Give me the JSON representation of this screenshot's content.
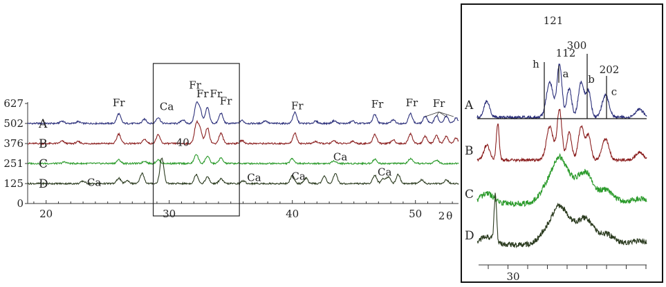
{
  "chart_data": [
    {
      "type": "line",
      "title": "",
      "xlabel": "2θ",
      "ylabel": "",
      "xlim": [
        18.5,
        53.5
      ],
      "ylim": [
        0,
        627
      ],
      "x_ticks": [
        20,
        30,
        40,
        50
      ],
      "y_ticks": [
        0,
        125,
        251,
        376,
        502,
        627
      ],
      "series": [
        {
          "name": "A",
          "color": "#2b2f7a",
          "baseline": 502,
          "peaks": [
            [
              21.3,
              40
            ],
            [
              22.6,
              30
            ],
            [
              25.9,
              160
            ],
            [
              28.0,
              70
            ],
            [
              29.1,
              100
            ],
            [
              31.1,
              60
            ],
            [
              32.2,
              300
            ],
            [
              32.5,
              220
            ],
            [
              33.1,
              260
            ],
            [
              34.2,
              170
            ],
            [
              35.9,
              50
            ],
            [
              37.8,
              45
            ],
            [
              40.2,
              180
            ],
            [
              41.9,
              35
            ],
            [
              43.4,
              45
            ],
            [
              44.9,
              40
            ],
            [
              46.7,
              150
            ],
            [
              48.2,
              60
            ],
            [
              49.6,
              160
            ],
            [
              50.8,
              120
            ],
            [
              51.7,
              130
            ],
            [
              52.5,
              120
            ],
            [
              53.3,
              90
            ]
          ]
        },
        {
          "name": "B",
          "color": "#8b1f1f",
          "baseline": 376,
          "peaks": [
            [
              21.3,
              40
            ],
            [
              22.6,
              30
            ],
            [
              25.9,
              160
            ],
            [
              28.0,
              70
            ],
            [
              29.1,
              140
            ],
            [
              32.2,
              310
            ],
            [
              32.5,
              220
            ],
            [
              33.1,
              260
            ],
            [
              34.2,
              170
            ],
            [
              35.9,
              50
            ],
            [
              40.2,
              170
            ],
            [
              41.9,
              35
            ],
            [
              43.4,
              45
            ],
            [
              44.9,
              40
            ],
            [
              46.7,
              150
            ],
            [
              48.2,
              60
            ],
            [
              49.6,
              160
            ],
            [
              50.8,
              120
            ],
            [
              51.7,
              130
            ],
            [
              52.5,
              120
            ],
            [
              53.3,
              90
            ]
          ]
        },
        {
          "name": "C",
          "color": "#2a9a2a",
          "baseline": 251,
          "peaks": [
            [
              21.5,
              25
            ],
            [
              25.9,
              60
            ],
            [
              28.0,
              40
            ],
            [
              29.1,
              60
            ],
            [
              32.2,
              150
            ],
            [
              33.1,
              120
            ],
            [
              34.2,
              90
            ],
            [
              40.0,
              80
            ],
            [
              43.4,
              45
            ],
            [
              46.7,
              70
            ],
            [
              49.6,
              80
            ],
            [
              51.7,
              60
            ]
          ]
        },
        {
          "name": "D",
          "color": "#2a3a1e",
          "baseline": 125,
          "peaks": [
            [
              23.0,
              40
            ],
            [
              25.9,
              90
            ],
            [
              26.6,
              50
            ],
            [
              27.8,
              170
            ],
            [
              29.4,
              420
            ],
            [
              32.2,
              150
            ],
            [
              33.1,
              110
            ],
            [
              34.2,
              80
            ],
            [
              36.0,
              45
            ],
            [
              40.0,
              130
            ],
            [
              41.1,
              90
            ],
            [
              42.6,
              120
            ],
            [
              43.5,
              160
            ],
            [
              46.7,
              140
            ],
            [
              47.4,
              80
            ],
            [
              47.8,
              110
            ],
            [
              48.6,
              150
            ],
            [
              50.5,
              60
            ],
            [
              52.5,
              60
            ]
          ]
        }
      ],
      "annotations": [
        {
          "text": "Fr",
          "x": 25.9,
          "y": 610
        },
        {
          "text": "Ca",
          "x": 29.8,
          "y": 585
        },
        {
          "text": "Fr",
          "x": 32.1,
          "y": 720
        },
        {
          "text": "Fr",
          "x": 32.7,
          "y": 665
        },
        {
          "text": "Fr",
          "x": 33.8,
          "y": 665
        },
        {
          "text": "Fr",
          "x": 34.6,
          "y": 620
        },
        {
          "text": "40",
          "x": 31.1,
          "y": 360
        },
        {
          "text": "Fr",
          "x": 40.4,
          "y": 590
        },
        {
          "text": "Fr",
          "x": 46.9,
          "y": 600
        },
        {
          "text": "Fr",
          "x": 49.7,
          "y": 610
        },
        {
          "text": "Fr",
          "x": 51.9,
          "y": 605
        },
        {
          "text": "Ca",
          "x": 23.9,
          "y": 110
        },
        {
          "text": "Ca",
          "x": 36.9,
          "y": 140
        },
        {
          "text": "Ca",
          "x": 40.5,
          "y": 150
        },
        {
          "text": "Ca",
          "x": 43.9,
          "y": 270
        },
        {
          "text": "Ca",
          "x": 47.5,
          "y": 175
        }
      ],
      "box_range": [
        28.7,
        35.7
      ]
    },
    {
      "type": "line",
      "title": "",
      "xlabel": "",
      "ylabel": "",
      "xlim": [
        28.7,
        35.7
      ],
      "x_ticks": [
        30
      ],
      "series": [
        {
          "name": "A",
          "color": "#2b2f7a"
        },
        {
          "name": "B",
          "color": "#8b1f1f"
        },
        {
          "name": "C",
          "color": "#2a9a2a"
        },
        {
          "name": "D",
          "color": "#2a3a1e"
        }
      ],
      "peak_labels": [
        "121",
        "112",
        "300",
        "202"
      ],
      "line_labels": [
        "h",
        "a",
        "b",
        "c"
      ]
    }
  ]
}
